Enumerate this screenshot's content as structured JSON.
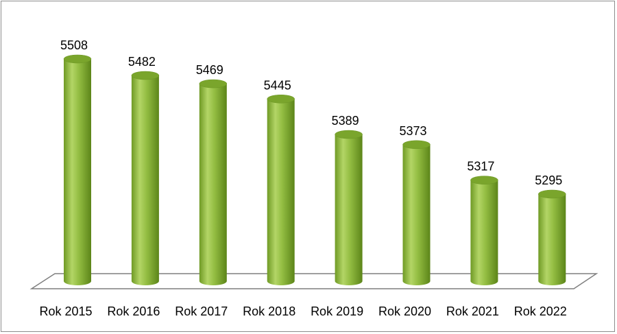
{
  "chart_data": {
    "type": "bar",
    "categories": [
      "Rok 2015",
      "Rok 2016",
      "Rok 2017",
      "Rok 2018",
      "Rok 2019",
      "Rok 2020",
      "Rok 2021",
      "Rok 2022"
    ],
    "values": [
      5508,
      5482,
      5469,
      5445,
      5389,
      5373,
      5317,
      5295
    ],
    "title": "",
    "xlabel": "",
    "ylabel": "",
    "bar_style": "3d-cylinder",
    "data_labels": true,
    "grid": false,
    "legend": false,
    "colors": {
      "bar_fill": "#8db53a",
      "bar_light": "#c3de7c",
      "bar_dark": "#5f8a1e",
      "bar_top": "#7aa52c",
      "floor_stroke": "#7f7f7f",
      "frame": "#8c8c8c"
    }
  }
}
